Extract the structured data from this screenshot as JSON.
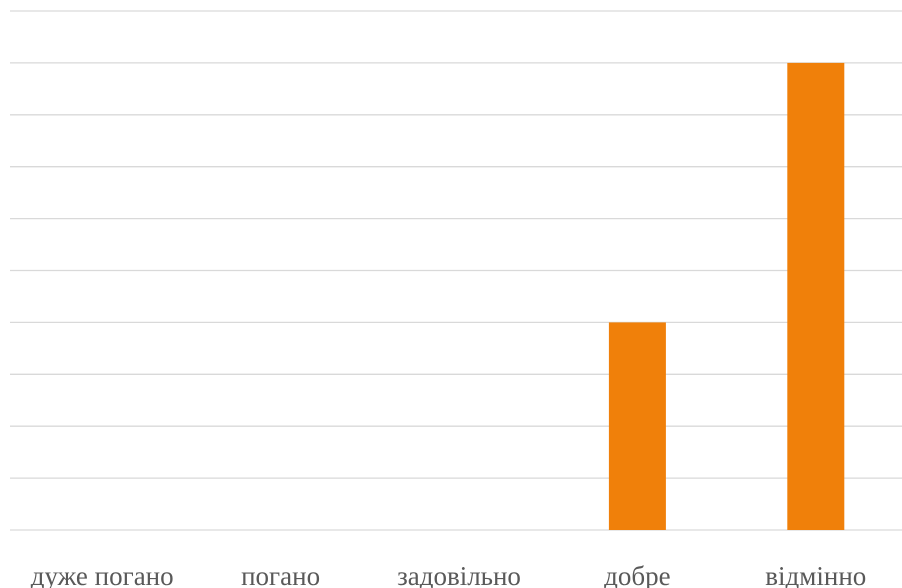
{
  "chart_data": {
    "type": "bar",
    "title": "",
    "xlabel": "",
    "ylabel": "",
    "categories": [
      "дуже погано",
      "погано",
      "задовільно",
      "добре",
      "відмінно"
    ],
    "series": [
      {
        "values": [
          0,
          0,
          0,
          4,
          9
        ]
      }
    ],
    "ylim": [
      0,
      10
    ],
    "grid": true,
    "gridline_count": 11,
    "bar_color": "#F0800A",
    "gridline_color": "#D9D9D9",
    "tick_label_color": "#595959"
  }
}
